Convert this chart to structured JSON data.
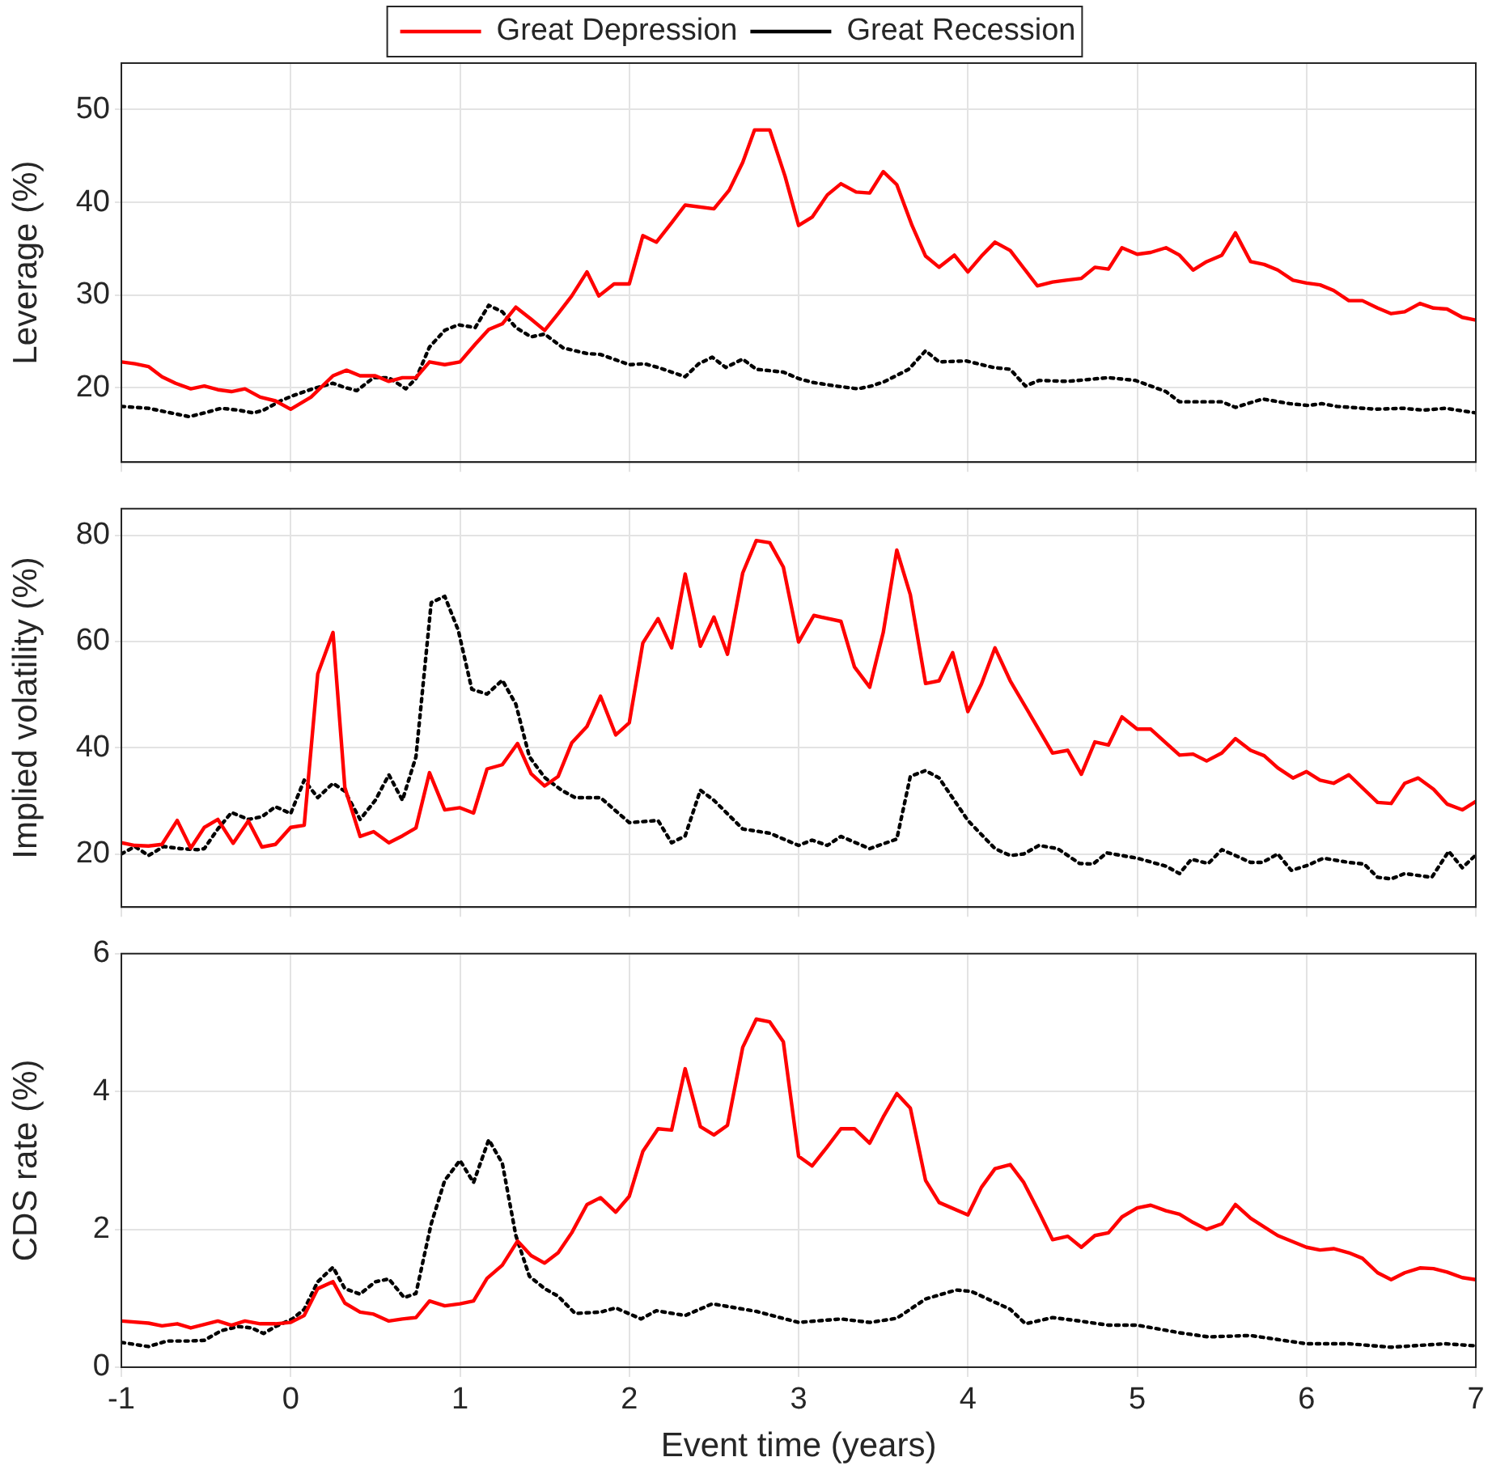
{
  "chart_data": [
    {
      "type": "line",
      "ylabel": "Leverage (%)",
      "xlim": [
        -1,
        7
      ],
      "xticks": [
        -1,
        0,
        1,
        2,
        3,
        4,
        5,
        6,
        7
      ],
      "ylim": [
        12,
        55
      ],
      "yticks": [
        20,
        30,
        40,
        50
      ],
      "grid": true,
      "legend": "top",
      "tick_labels": "y",
      "marker": "none",
      "series": [
        {
          "name": "Great Depression",
          "color": "#ff0000",
          "line_style": "solid",
          "x": [
            -1,
            -0.92,
            -0.84,
            -0.76,
            -0.68,
            -0.59,
            -0.51,
            -0.43,
            -0.35,
            -0.27,
            -0.18,
            -0.09,
            0,
            0.12,
            0.25,
            0.33,
            0.41,
            0.5,
            0.58,
            0.66,
            0.74,
            0.82,
            0.91,
            1,
            1.09,
            1.17,
            1.25,
            1.33,
            1.42,
            1.5,
            1.58,
            1.66,
            1.75,
            1.82,
            1.91,
            2,
            2.08,
            2.16,
            2.25,
            2.33,
            2.5,
            2.59,
            2.67,
            2.74,
            2.83,
            2.92,
            3,
            3.08,
            3.17,
            3.25,
            3.34,
            3.42,
            3.5,
            3.58,
            3.67,
            3.75,
            3.83,
            3.92,
            4,
            4.08,
            4.16,
            4.25,
            4.33,
            4.41,
            4.5,
            4.58,
            4.67,
            4.75,
            4.83,
            4.91,
            5,
            5.08,
            5.17,
            5.25,
            5.33,
            5.41,
            5.5,
            5.58,
            5.67,
            5.75,
            5.83,
            5.92,
            6,
            6.08,
            6.16,
            6.25,
            6.33,
            6.42,
            6.5,
            6.58,
            6.67,
            6.75,
            6.83,
            6.92,
            7
          ],
          "values": [
            22.8,
            22.6,
            22.3,
            21.2,
            20.5,
            19.9,
            20.2,
            19.8,
            19.6,
            19.9,
            19,
            18.6,
            17.7,
            19,
            21.3,
            21.9,
            21.3,
            21.3,
            20.7,
            21.1,
            21.1,
            22.8,
            22.5,
            22.8,
            24.7,
            26.3,
            26.9,
            28.7,
            27.4,
            26.2,
            28,
            29.9,
            32.5,
            29.9,
            31.2,
            31.2,
            36.4,
            35.7,
            37.8,
            39.7,
            39.3,
            41.3,
            44.3,
            47.8,
            47.8,
            42.8,
            37.5,
            38.4,
            40.8,
            42,
            41.1,
            41,
            43.3,
            41.9,
            37.5,
            34.2,
            33,
            34.3,
            32.5,
            34.2,
            35.7,
            34.8,
            32.9,
            31,
            31.4,
            31.6,
            31.8,
            33,
            32.8,
            35.1,
            34.4,
            34.6,
            35.1,
            34.3,
            32.7,
            33.6,
            34.3,
            36.7,
            33.6,
            33.3,
            32.7,
            31.6,
            31.3,
            31.1,
            30.5,
            29.4,
            29.4,
            28.6,
            28,
            28.2,
            29.1,
            28.6,
            28.5,
            27.6,
            27.3
          ]
        },
        {
          "name": "Great Recession",
          "color": "#000000",
          "line_style": "dotted",
          "x": [
            -1,
            -0.84,
            -0.76,
            -0.6,
            -0.51,
            -0.41,
            -0.31,
            -0.22,
            -0.16,
            -0.06,
            0.02,
            0.13,
            0.25,
            0.31,
            0.39,
            0.49,
            0.58,
            0.68,
            0.74,
            0.82,
            0.91,
            0.99,
            1.09,
            1.17,
            1.25,
            1.33,
            1.42,
            1.5,
            1.61,
            1.75,
            1.83,
            2,
            2.09,
            2.17,
            2.33,
            2.41,
            2.49,
            2.57,
            2.67,
            2.75,
            2.91,
            3,
            3.08,
            3.22,
            3.35,
            3.43,
            3.51,
            3.65,
            3.75,
            3.83,
            3.99,
            4.15,
            4.25,
            4.34,
            4.42,
            4.59,
            4.83,
            4.99,
            5.17,
            5.25,
            5.42,
            5.5,
            5.58,
            5.74,
            5.9,
            6.01,
            6.09,
            6.18,
            6.41,
            6.57,
            6.69,
            6.82,
            7
          ],
          "values": [
            18,
            17.8,
            17.5,
            16.9,
            17.3,
            17.8,
            17.6,
            17.3,
            17.6,
            18.6,
            19.2,
            19.9,
            20.5,
            20.1,
            19.7,
            21.1,
            21.1,
            19.9,
            21,
            24.4,
            26.2,
            26.8,
            26.5,
            28.9,
            28.2,
            26.5,
            25.5,
            25.8,
            24.3,
            23.7,
            23.6,
            22.5,
            22.6,
            22.2,
            21.2,
            22.6,
            23.3,
            22.2,
            23.1,
            22,
            21.7,
            21,
            20.6,
            20.2,
            19.9,
            20.2,
            20.7,
            22,
            24,
            22.8,
            22.9,
            22.2,
            22,
            20.2,
            20.8,
            20.7,
            21.1,
            20.8,
            19.6,
            18.5,
            18.5,
            18.5,
            17.9,
            18.8,
            18.3,
            18.1,
            18.3,
            18,
            17.7,
            17.8,
            17.6,
            17.8,
            17.3
          ]
        }
      ]
    },
    {
      "type": "line",
      "ylabel": "Implied volatility (%)",
      "xlim": [
        -1,
        7
      ],
      "xticks": [
        -1,
        0,
        1,
        2,
        3,
        4,
        5,
        6,
        7
      ],
      "ylim": [
        10,
        85
      ],
      "yticks": [
        20,
        40,
        60,
        80
      ],
      "grid": true,
      "tick_labels": "y",
      "marker": "none",
      "series": [
        {
          "color": "#ff0000",
          "line_style": "solid",
          "x": [
            -1,
            -0.92,
            -0.84,
            -0.76,
            -0.67,
            -0.59,
            -0.51,
            -0.43,
            -0.34,
            -0.25,
            -0.17,
            -0.09,
            0,
            0.08,
            0.16,
            0.25,
            0.32,
            0.41,
            0.49,
            0.58,
            0.66,
            0.74,
            0.82,
            0.91,
            1,
            1.08,
            1.16,
            1.25,
            1.34,
            1.42,
            1.5,
            1.58,
            1.66,
            1.75,
            1.83,
            1.92,
            2,
            2.08,
            2.17,
            2.25,
            2.33,
            2.42,
            2.5,
            2.58,
            2.67,
            2.75,
            2.83,
            2.91,
            3,
            3.09,
            3.25,
            3.33,
            3.42,
            3.5,
            3.58,
            3.66,
            3.75,
            3.83,
            3.91,
            4,
            4.08,
            4.16,
            4.25,
            4.5,
            4.59,
            4.67,
            4.75,
            4.83,
            4.91,
            5,
            5.08,
            5.17,
            5.25,
            5.33,
            5.41,
            5.5,
            5.58,
            5.67,
            5.75,
            5.83,
            5.92,
            6,
            6.08,
            6.16,
            6.25,
            6.42,
            6.5,
            6.58,
            6.66,
            6.75,
            6.83,
            6.92,
            7
          ],
          "values": [
            22.1,
            21.6,
            21.5,
            21.8,
            26.3,
            21.1,
            25,
            26.5,
            22,
            26.2,
            21.3,
            21.8,
            25,
            25.4,
            53.9,
            61.7,
            32.5,
            23.3,
            24.2,
            22.1,
            23.4,
            24.9,
            35.3,
            28.3,
            28.7,
            27.7,
            36,
            36.8,
            40.8,
            35.1,
            32.8,
            34.6,
            40.9,
            44,
            49.7,
            42.4,
            44.7,
            59.7,
            64.3,
            58.8,
            72.7,
            59.1,
            64.6,
            57.6,
            72.9,
            79,
            78.6,
            74,
            59.9,
            64.9,
            63.8,
            55.2,
            51.4,
            61.7,
            77.2,
            68.8,
            52.1,
            52.6,
            57.9,
            46.8,
            52,
            58.8,
            52.6,
            39,
            39.5,
            35,
            41.1,
            40.5,
            45.8,
            43.5,
            43.5,
            40.9,
            38.6,
            38.8,
            37.5,
            39,
            41.7,
            39.5,
            38.5,
            36.2,
            34.3,
            35.5,
            33.9,
            33.3,
            34.9,
            29.7,
            29.5,
            33.3,
            34.3,
            32.2,
            29.4,
            28.3,
            29.9
          ]
        },
        {
          "color": "#000000",
          "line_style": "dotted",
          "x": [
            -1,
            -0.92,
            -0.84,
            -0.75,
            -0.65,
            -0.55,
            -0.51,
            -0.43,
            -0.35,
            -0.25,
            -0.17,
            -0.09,
            0,
            0.08,
            0.16,
            0.25,
            0.32,
            0.41,
            0.5,
            0.58,
            0.66,
            0.74,
            0.83,
            0.91,
            0.99,
            1.07,
            1.16,
            1.25,
            1.33,
            1.41,
            1.5,
            1.6,
            1.68,
            1.83,
            2,
            2.17,
            2.25,
            2.33,
            2.42,
            2.5,
            2.67,
            2.83,
            3,
            3.08,
            3.17,
            3.25,
            3.42,
            3.58,
            3.66,
            3.75,
            3.83,
            4,
            4.16,
            4.25,
            4.33,
            4.42,
            4.53,
            4.66,
            4.74,
            4.82,
            5,
            5.17,
            5.25,
            5.32,
            5.42,
            5.5,
            5.58,
            5.67,
            5.74,
            5.83,
            5.91,
            6.01,
            6.1,
            6.25,
            6.34,
            6.42,
            6.5,
            6.58,
            6.74,
            6.84,
            6.92,
            7
          ],
          "values": [
            20,
            21.4,
            19.7,
            21.4,
            21,
            20.8,
            21,
            24.7,
            27.8,
            26.5,
            27,
            28.9,
            27.6,
            33.9,
            30.6,
            33.3,
            31.8,
            26.5,
            30.1,
            34.9,
            30.1,
            38.3,
            67.3,
            68.5,
            62.1,
            51,
            50.1,
            52.7,
            48.2,
            38.3,
            34.4,
            32,
            30.6,
            30.6,
            25.9,
            26.3,
            22.1,
            23.4,
            32,
            30.1,
            24.7,
            23.9,
            21.6,
            22.6,
            21.6,
            23.3,
            21,
            22.8,
            34.6,
            35.7,
            34.3,
            26.3,
            21,
            19.7,
            20,
            21.6,
            21,
            18.2,
            18.1,
            20.2,
            19.2,
            17.7,
            16.3,
            19,
            18.2,
            20.8,
            19.7,
            18.4,
            18.4,
            20,
            16.9,
            17.9,
            19.2,
            18.4,
            18.1,
            15.6,
            15.3,
            16.3,
            15.6,
            20.5,
            17.4,
            19.8
          ]
        }
      ]
    },
    {
      "type": "line",
      "xlabel": "Event time (years)",
      "ylabel": "CDS rate (%)",
      "xlim": [
        -1,
        7
      ],
      "xticks": [
        -1,
        0,
        1,
        2,
        3,
        4,
        5,
        6,
        7
      ],
      "ylim": [
        0,
        6
      ],
      "yticks": [
        0,
        2,
        4,
        6
      ],
      "grid": true,
      "marker": "none",
      "series": [
        {
          "color": "#ff0000",
          "line_style": "solid",
          "x": [
            -1,
            -0.84,
            -0.76,
            -0.67,
            -0.59,
            -0.43,
            -0.35,
            -0.27,
            -0.18,
            -0.09,
            0,
            0.08,
            0.16,
            0.25,
            0.32,
            0.41,
            0.49,
            0.58,
            0.66,
            0.74,
            0.82,
            0.91,
            1,
            1.08,
            1.16,
            1.25,
            1.34,
            1.42,
            1.5,
            1.58,
            1.66,
            1.75,
            1.83,
            1.92,
            2,
            2.08,
            2.17,
            2.25,
            2.33,
            2.42,
            2.5,
            2.58,
            2.67,
            2.75,
            2.83,
            2.91,
            3,
            3.08,
            3.17,
            3.25,
            3.33,
            3.42,
            3.5,
            3.58,
            3.66,
            3.75,
            3.83,
            4,
            4.08,
            4.16,
            4.25,
            4.33,
            4.42,
            4.5,
            4.59,
            4.67,
            4.75,
            4.83,
            4.91,
            5,
            5.08,
            5.17,
            5.25,
            5.33,
            5.41,
            5.5,
            5.58,
            5.67,
            5.83,
            6,
            6.08,
            6.16,
            6.25,
            6.33,
            6.42,
            6.5,
            6.58,
            6.67,
            6.75,
            6.83,
            6.92,
            7
          ],
          "values": [
            0.67,
            0.64,
            0.6,
            0.63,
            0.57,
            0.67,
            0.61,
            0.67,
            0.63,
            0.63,
            0.65,
            0.75,
            1.14,
            1.24,
            0.93,
            0.8,
            0.77,
            0.67,
            0.7,
            0.72,
            0.96,
            0.89,
            0.92,
            0.96,
            1.29,
            1.48,
            1.83,
            1.62,
            1.51,
            1.66,
            1.95,
            2.36,
            2.46,
            2.25,
            2.48,
            3.13,
            3.46,
            3.44,
            4.33,
            3.49,
            3.37,
            3.51,
            4.64,
            5.05,
            5.01,
            4.72,
            3.06,
            2.92,
            3.2,
            3.46,
            3.46,
            3.25,
            3.63,
            3.97,
            3.76,
            2.71,
            2.39,
            2.21,
            2.61,
            2.88,
            2.94,
            2.68,
            2.25,
            1.85,
            1.9,
            1.74,
            1.91,
            1.95,
            2.18,
            2.31,
            2.35,
            2.27,
            2.22,
            2.1,
            2,
            2.08,
            2.36,
            2.16,
            1.91,
            1.74,
            1.7,
            1.72,
            1.66,
            1.58,
            1.37,
            1.27,
            1.37,
            1.44,
            1.43,
            1.38,
            1.3,
            1.27
          ]
        },
        {
          "color": "#000000",
          "line_style": "dotted",
          "x": [
            -1,
            -0.84,
            -0.73,
            -0.6,
            -0.51,
            -0.41,
            -0.31,
            -0.23,
            -0.16,
            -0.09,
            0.01,
            0.08,
            0.16,
            0.25,
            0.32,
            0.41,
            0.5,
            0.58,
            0.67,
            0.74,
            0.83,
            0.91,
            1,
            1.08,
            1.17,
            1.25,
            1.33,
            1.41,
            1.5,
            1.58,
            1.68,
            1.83,
            1.92,
            2.07,
            2.16,
            2.33,
            2.49,
            2.75,
            3,
            3.25,
            3.42,
            3.58,
            3.75,
            3.93,
            4.02,
            4.25,
            4.34,
            4.5,
            4.66,
            4.83,
            5,
            5.25,
            5.42,
            5.67,
            6,
            6.25,
            6.5,
            6.82,
            7
          ],
          "values": [
            0.36,
            0.3,
            0.38,
            0.38,
            0.39,
            0.53,
            0.59,
            0.57,
            0.49,
            0.59,
            0.7,
            0.84,
            1.24,
            1.45,
            1.14,
            1.06,
            1.24,
            1.28,
            1.01,
            1.07,
            2.08,
            2.71,
            3,
            2.68,
            3.3,
            2.96,
            1.91,
            1.32,
            1.14,
            1.03,
            0.78,
            0.8,
            0.86,
            0.7,
            0.82,
            0.75,
            0.92,
            0.81,
            0.65,
            0.7,
            0.65,
            0.71,
            0.99,
            1.12,
            1.1,
            0.84,
            0.63,
            0.72,
            0.67,
            0.61,
            0.61,
            0.5,
            0.44,
            0.46,
            0.34,
            0.34,
            0.29,
            0.34,
            0.31
          ]
        }
      ]
    }
  ]
}
